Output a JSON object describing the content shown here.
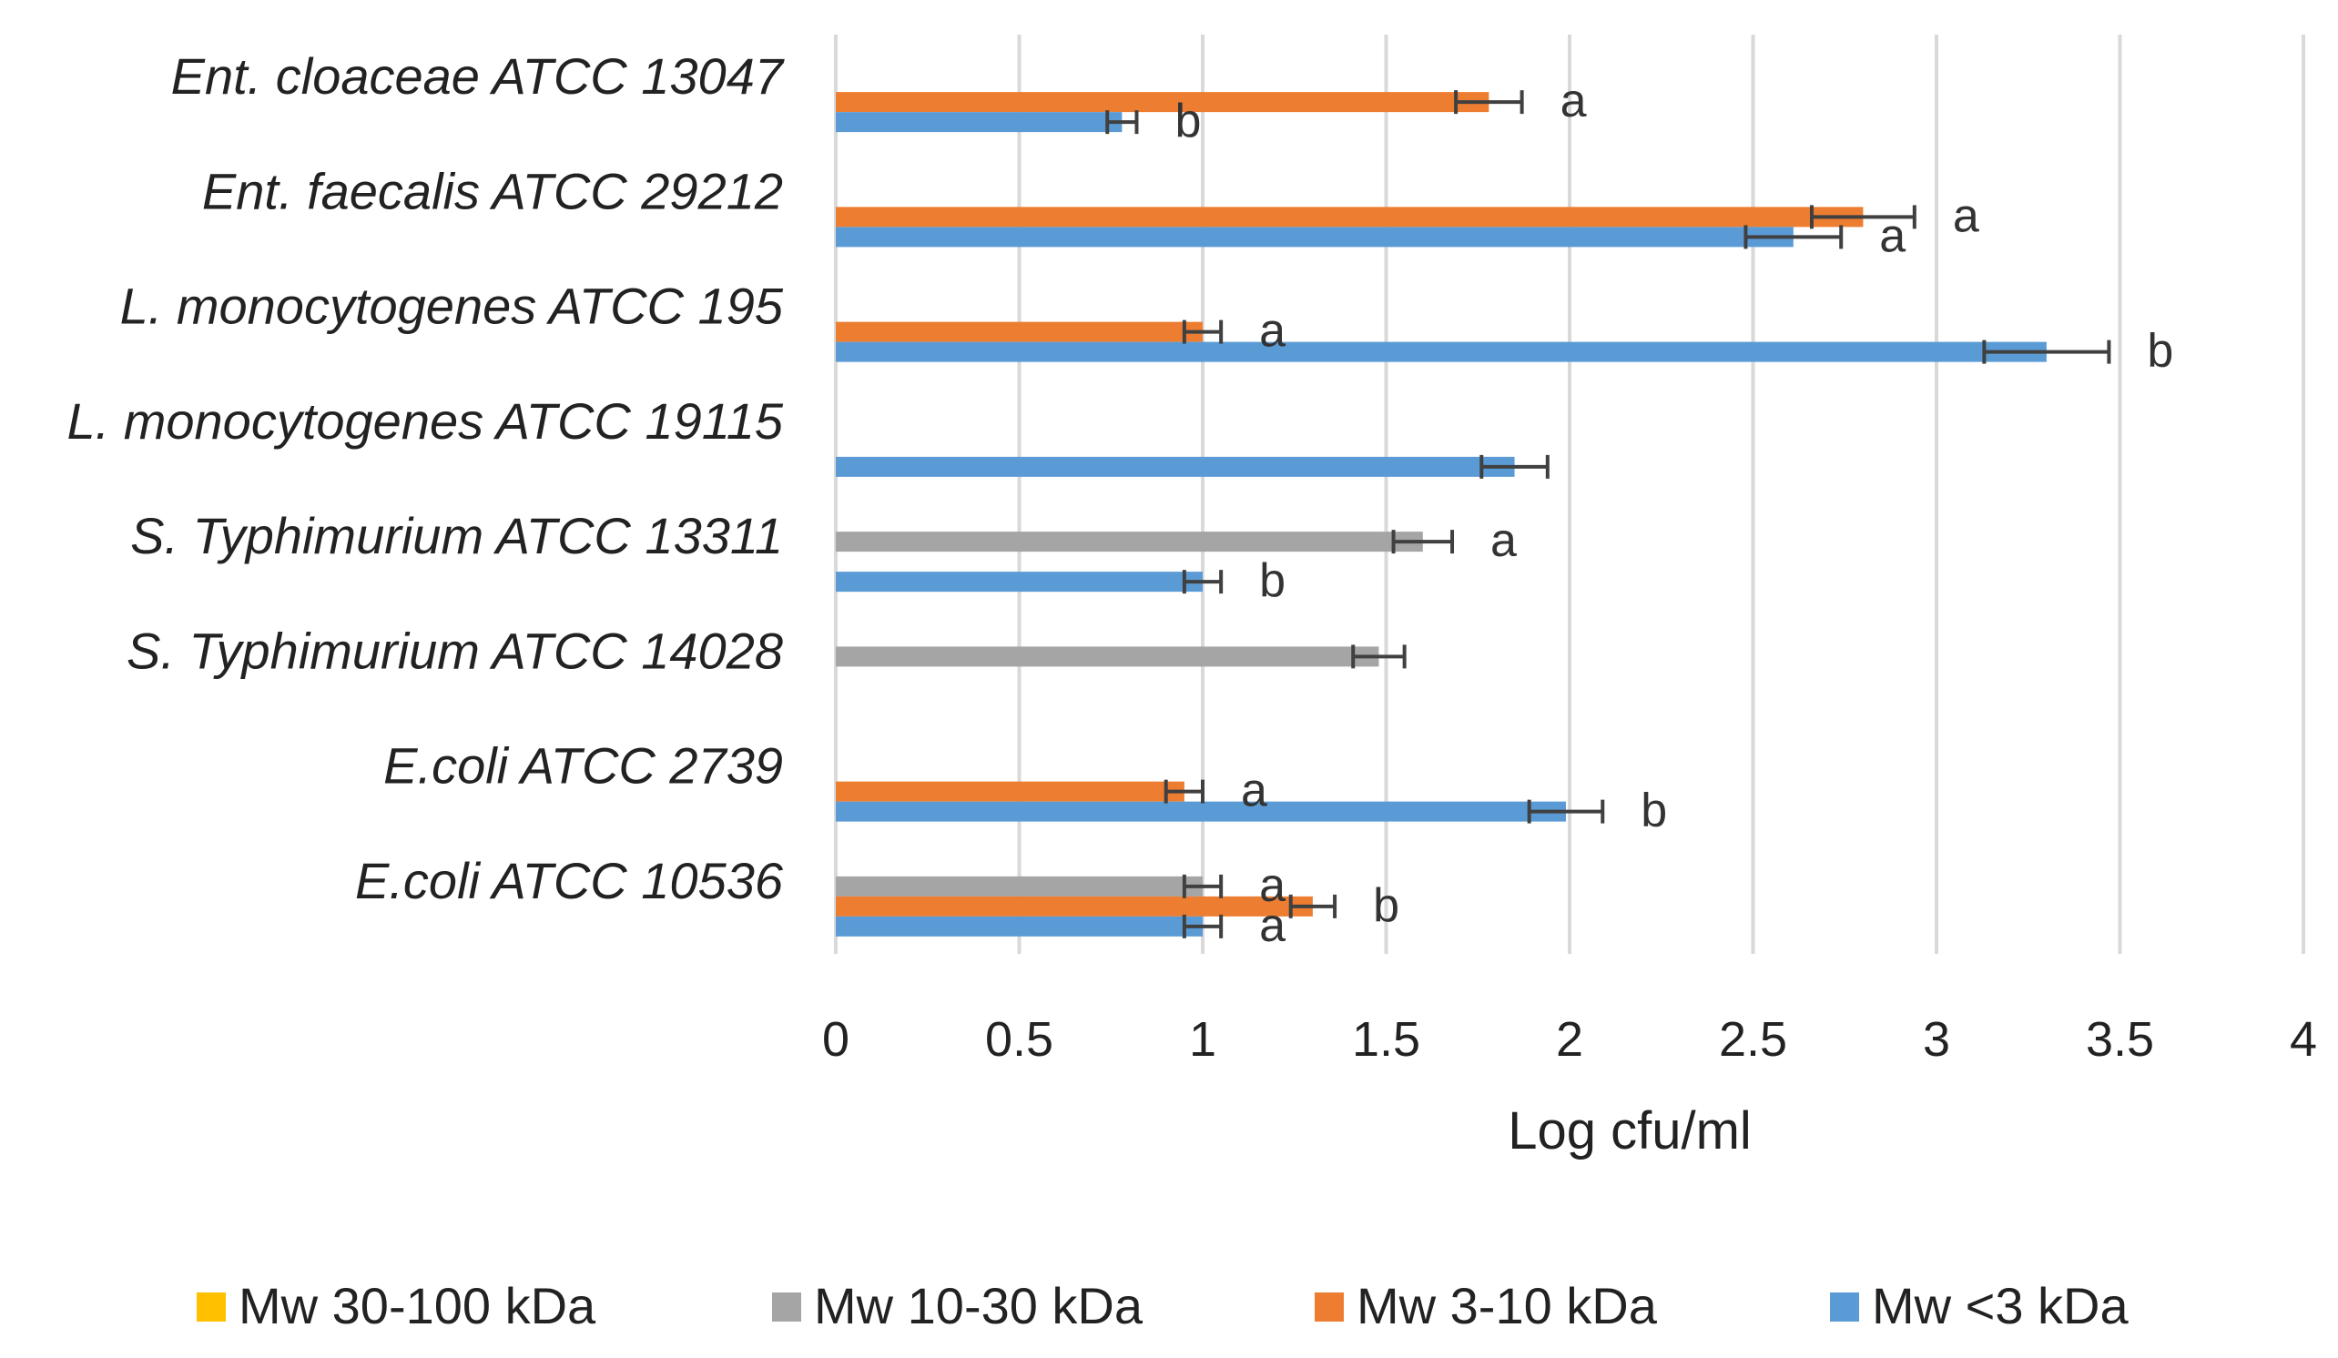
{
  "chart_data": {
    "type": "bar",
    "orientation": "horizontal",
    "title": "",
    "xlabel": "Log cfu/ml",
    "ylabel": "",
    "xlim": [
      0,
      4
    ],
    "x_ticks": [
      "0",
      "0.5",
      "1",
      "1.5",
      "2",
      "2.5",
      "3",
      "3.5",
      "4"
    ],
    "grid": true,
    "legend_position": "bottom",
    "categories": [
      "Ent. cloaceae ATCC 13047",
      "Ent. faecalis ATCC 29212",
      "L. monocytogenes ATCC 195",
      "L. monocytogenes ATCC 19115",
      "S. Typhimurium ATCC 13311",
      "S. Typhimurium ATCC 14028",
      "E.coli ATCC 2739",
      "E.coli ATCC 10536"
    ],
    "series": [
      {
        "name": "Mw 30-100 kDa",
        "color": "#FFC000",
        "values": [
          null,
          null,
          null,
          null,
          null,
          null,
          null,
          null
        ],
        "errors": [
          null,
          null,
          null,
          null,
          null,
          null,
          null,
          null
        ],
        "letters": [
          null,
          null,
          null,
          null,
          null,
          null,
          null,
          null
        ]
      },
      {
        "name": "Mw 10-30 kDa",
        "color": "#A5A5A5",
        "values": [
          null,
          null,
          null,
          null,
          1.6,
          1.48,
          null,
          1.0
        ],
        "errors": [
          null,
          null,
          null,
          null,
          0.08,
          0.07,
          null,
          0.05
        ],
        "letters": [
          null,
          null,
          null,
          null,
          "a",
          null,
          null,
          "a"
        ]
      },
      {
        "name": "Mw 3-10 kDa",
        "color": "#ED7D31",
        "values": [
          1.78,
          2.8,
          1.0,
          null,
          null,
          null,
          0.95,
          1.3
        ],
        "errors": [
          0.09,
          0.14,
          0.05,
          null,
          null,
          null,
          0.05,
          0.06
        ],
        "letters": [
          "a",
          "a",
          "a",
          null,
          null,
          null,
          "a",
          "b"
        ]
      },
      {
        "name": "Mw <3 kDa",
        "color": "#5B9BD5",
        "values": [
          0.78,
          2.61,
          3.3,
          1.85,
          1.0,
          null,
          1.99,
          1.0
        ],
        "errors": [
          0.04,
          0.13,
          0.17,
          0.09,
          0.05,
          null,
          0.1,
          0.05
        ],
        "letters": [
          "b",
          "a",
          "b",
          null,
          "b",
          null,
          "b",
          "a"
        ]
      }
    ]
  }
}
